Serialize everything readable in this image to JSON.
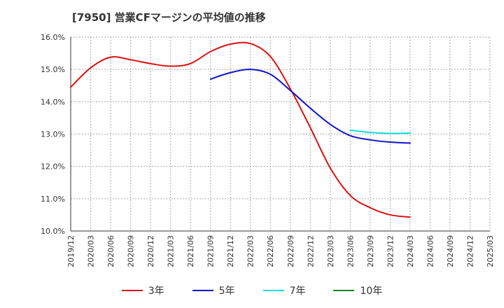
{
  "chart_data": {
    "type": "line",
    "title": "[7950]  営業CFマージンの平均値の推移",
    "xlabel": "",
    "ylabel": "",
    "ylim": [
      10.0,
      16.0
    ],
    "yticks": [
      "10.0%",
      "11.0%",
      "12.0%",
      "13.0%",
      "14.0%",
      "15.0%",
      "16.0%"
    ],
    "xticks": [
      "2019/12",
      "2020/03",
      "2020/06",
      "2020/09",
      "2020/12",
      "2021/03",
      "2021/06",
      "2021/09",
      "2021/12",
      "2022/03",
      "2022/06",
      "2022/09",
      "2022/12",
      "2023/03",
      "2023/06",
      "2023/09",
      "2023/12",
      "2024/03",
      "2024/06",
      "2024/09",
      "2024/12",
      "2025/03"
    ],
    "grid": true,
    "legend_position": "bottom",
    "series": [
      {
        "name": "3年",
        "color": "#dd1111",
        "x": [
          "2019/12",
          "2020/03",
          "2020/06",
          "2020/09",
          "2020/12",
          "2021/03",
          "2021/06",
          "2021/09",
          "2021/12",
          "2022/03",
          "2022/06",
          "2022/09",
          "2022/12",
          "2023/03",
          "2023/06",
          "2023/09",
          "2023/12",
          "2024/03"
        ],
        "values": [
          14.45,
          15.05,
          15.38,
          15.3,
          15.18,
          15.1,
          15.18,
          15.55,
          15.78,
          15.8,
          15.4,
          14.4,
          13.2,
          11.95,
          11.1,
          10.72,
          10.5,
          10.43
        ]
      },
      {
        "name": "5年",
        "color": "#1111cc",
        "x": [
          "2021/09",
          "2021/12",
          "2022/03",
          "2022/06",
          "2022/09",
          "2022/12",
          "2023/03",
          "2023/06",
          "2023/09",
          "2023/12",
          "2024/03"
        ],
        "values": [
          14.7,
          14.9,
          15.0,
          14.85,
          14.35,
          13.8,
          13.3,
          12.95,
          12.82,
          12.75,
          12.72
        ]
      },
      {
        "name": "7年",
        "color": "#11dddd",
        "x": [
          "2023/06",
          "2023/09",
          "2023/12",
          "2024/03"
        ],
        "values": [
          13.12,
          13.05,
          13.02,
          13.03
        ]
      },
      {
        "name": "10年",
        "color": "#118811",
        "x": [],
        "values": []
      }
    ]
  }
}
